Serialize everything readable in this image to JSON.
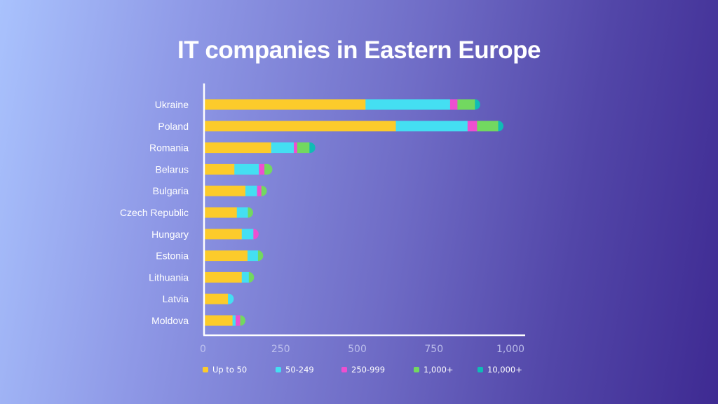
{
  "chart_data": {
    "type": "bar",
    "orientation": "horizontal",
    "stacked": true,
    "title": "IT companies in Eastern Europe",
    "xlabel": "",
    "ylabel": "",
    "xlim": [
      0,
      1000
    ],
    "xticks": [
      0,
      250,
      500,
      750,
      1000
    ],
    "xtick_labels": [
      "0",
      "250",
      "500",
      "750",
      "1,000"
    ],
    "grid": false,
    "legend_position": "bottom",
    "categories": [
      "Ukraine",
      "Poland",
      "Romania",
      "Belarus",
      "Bulgaria",
      "Czech Republic",
      "Hungary",
      "Estonia",
      "Lithuania",
      "Latvia",
      "Moldova"
    ],
    "series": [
      {
        "name": "Up to 50",
        "color": "#fccb2b",
        "values": [
          527,
          626,
          219,
          99,
          135,
          107,
          123,
          142,
          123,
          78,
          93
        ]
      },
      {
        "name": "50-249",
        "color": "#44dff2",
        "values": [
          276,
          234,
          74,
          80,
          38,
          36,
          38,
          34,
          23,
          19,
          10
        ]
      },
      {
        "name": "250-999",
        "color": "#ee4fd0",
        "values": [
          24,
          31,
          11,
          18,
          14,
          0,
          17,
          0,
          0,
          0,
          15
        ]
      },
      {
        "name": "1,000+",
        "color": "#72d860",
        "values": [
          57,
          69,
          40,
          26,
          18,
          15,
          0,
          15,
          15,
          0,
          10
        ]
      },
      {
        "name": "10,000+",
        "color": "#0fbcb5",
        "values": [
          16,
          17,
          19,
          0,
          0,
          0,
          0,
          0,
          0,
          0,
          0
        ]
      }
    ]
  }
}
